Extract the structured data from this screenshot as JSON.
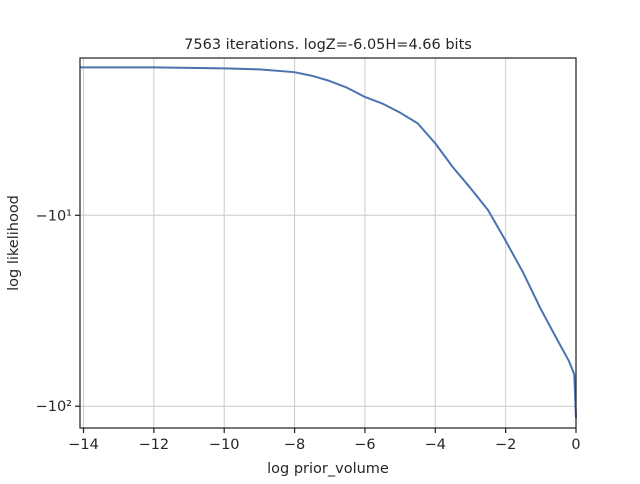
{
  "chart_data": {
    "type": "line",
    "title": "7563 iterations. logZ=-6.05H=4.66 bits",
    "xlabel": "log prior_volume",
    "ylabel": "log likelihood",
    "xlim": [
      -14.1,
      0
    ],
    "x_ticks": [
      -14,
      -12,
      -10,
      -8,
      -6,
      -4,
      -2,
      0
    ],
    "x_tick_labels": [
      "−14",
      "−12",
      "−10",
      "−8",
      "−6",
      "−4",
      "−2",
      "0"
    ],
    "yscale": "symlog",
    "ylim": [
      -130,
      -1.5
    ],
    "y_ticks": [
      -10,
      -100
    ],
    "y_tick_labels": [
      "−10¹",
      "−10²"
    ],
    "grid": true,
    "line_color": "#4c72b0",
    "series": [
      {
        "x": [
          -14.1,
          -13.0,
          -12.0,
          -11.0,
          -10.0,
          -9.0,
          -8.0,
          -7.5,
          -7.0,
          -6.5,
          -6.0,
          -5.5,
          -5.0,
          -4.5,
          -4.0,
          -3.5,
          -3.0,
          -2.5,
          -2.0,
          -1.5,
          -1.0,
          -0.5,
          -0.2,
          -0.05,
          0.0
        ],
        "y": [
          -1.68,
          -1.68,
          -1.68,
          -1.69,
          -1.7,
          -1.72,
          -1.78,
          -1.86,
          -1.98,
          -2.15,
          -2.4,
          -2.6,
          -2.9,
          -3.3,
          -4.2,
          -5.6,
          -7.2,
          -9.4,
          -13.6,
          -20.0,
          -31.0,
          -46.0,
          -58.0,
          -68.0,
          -115.0
        ]
      }
    ]
  }
}
